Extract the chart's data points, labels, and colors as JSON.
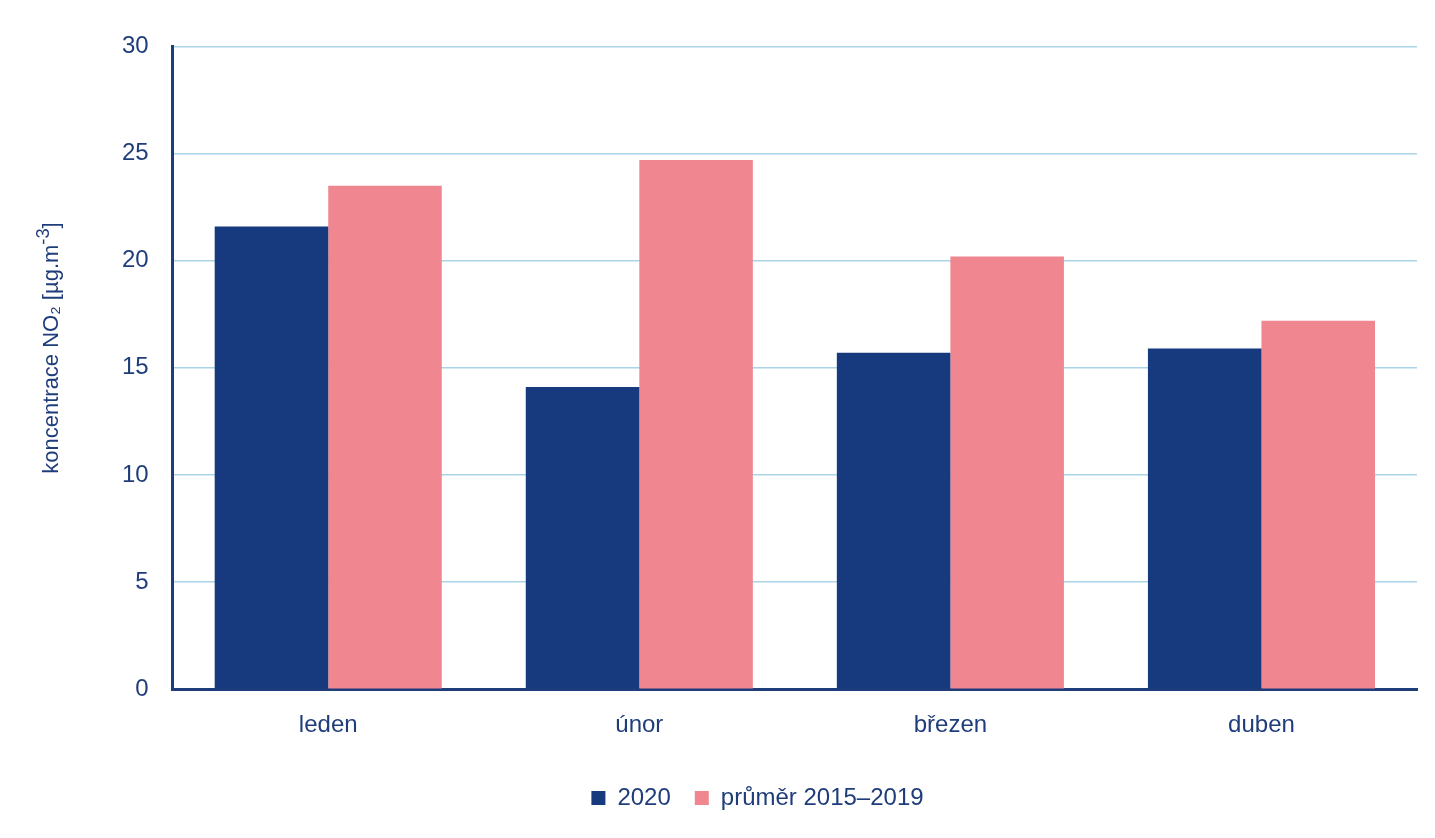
{
  "chart_data": {
    "type": "bar",
    "ylabel": "koncentrace NO₂ [µg.m$^{-3}$]",
    "categories": [
      "leden",
      "únor",
      "březen",
      "duben"
    ],
    "series": [
      {
        "name": "2020",
        "color": "#173a7e",
        "values": [
          21.6,
          14.1,
          15.7,
          15.9
        ]
      },
      {
        "name": "průměr 2015–2019",
        "color": "#ef8690",
        "values": [
          23.5,
          24.7,
          20.2,
          17.2
        ]
      }
    ],
    "ylim": [
      0,
      30
    ],
    "yticks": [
      0,
      5,
      10,
      15,
      20,
      25,
      30
    ],
    "grid": "y",
    "legend": "bottom"
  }
}
